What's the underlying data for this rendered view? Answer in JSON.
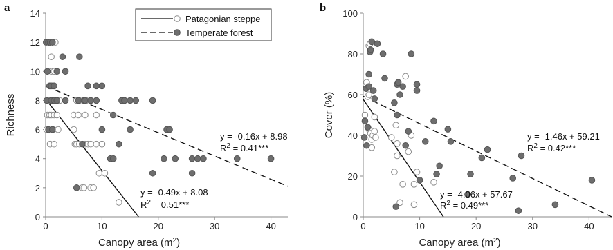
{
  "chart_data": [
    {
      "panel": "a",
      "type": "scatter",
      "xlabel": "Canopy area (m",
      "xlabel_sup": "2",
      "xlabel_close": ")",
      "ylabel": "Richness",
      "xlim": [
        0,
        43
      ],
      "ylim": [
        0,
        14
      ],
      "xticks": [
        0,
        10,
        20,
        30,
        40
      ],
      "yticks": [
        0,
        2,
        4,
        6,
        8,
        10,
        12,
        14
      ],
      "legend": {
        "placement": "top-center",
        "entries": [
          {
            "label": "Patagonian steppe",
            "marker": "open-circle",
            "line": "solid"
          },
          {
            "label": "Temperate forest",
            "marker": "filled-circle",
            "line": "dashed"
          }
        ]
      },
      "series": [
        {
          "name": "Patagonian steppe",
          "marker": "open",
          "fit": {
            "slope": -0.49,
            "intercept": 8.08,
            "x_end": 16.5
          },
          "equation": "y = -0.49x + 8.08",
          "r2_main": "R",
          "r2_sup": "2",
          "r2_rest": " = 0.51***",
          "x": [
            0.2,
            0.3,
            0.5,
            0.6,
            0.7,
            0.8,
            0.8,
            1,
            1,
            1,
            1,
            1.2,
            1.3,
            1.5,
            1.5,
            1.5,
            1.5,
            1.5,
            1.7,
            2,
            2,
            2.2,
            2.5,
            5,
            5,
            5.2,
            5.5,
            5.5,
            5.8,
            6,
            6,
            6.5,
            6.8,
            7,
            7,
            7.2,
            7.5,
            8,
            8,
            8,
            8.5,
            9,
            9,
            9.5,
            10,
            10,
            10.5,
            13
          ],
          "y": [
            6,
            7,
            8,
            12,
            7,
            9,
            5,
            10,
            8,
            11,
            7,
            9,
            6,
            10,
            8,
            7,
            9,
            5,
            12,
            7,
            8,
            6,
            8,
            6,
            7,
            5,
            5,
            8,
            7,
            5,
            8,
            2,
            2,
            5,
            7,
            8,
            5,
            8,
            2,
            5,
            2,
            5,
            7,
            3,
            5,
            5,
            3,
            1
          ]
        },
        {
          "name": "Temperate forest",
          "marker": "filled",
          "fit": {
            "slope": -0.16,
            "intercept": 8.98,
            "x_end": 43
          },
          "equation": "y = -0.16x + 8.98",
          "r2_main": "R",
          "r2_sup": "2",
          "r2_rest": " = 0.41***",
          "x": [
            0.1,
            0.2,
            0.3,
            0.5,
            0.5,
            0.7,
            0.8,
            1,
            1,
            1.2,
            1.2,
            1.5,
            1.5,
            2,
            2,
            3,
            3.5,
            3.5,
            5.5,
            5.8,
            6,
            6.5,
            6.8,
            7,
            7.5,
            8,
            9,
            9,
            10,
            10,
            11.5,
            12,
            12,
            13,
            13.5,
            14,
            15,
            15,
            16,
            19,
            19,
            21,
            21.5,
            22,
            23,
            26,
            26,
            27,
            28,
            34,
            40
          ],
          "y": [
            12,
            8,
            10,
            6,
            12,
            9,
            12,
            8,
            9,
            12,
            6,
            9,
            8,
            8,
            10,
            11,
            8,
            10,
            2,
            8,
            11,
            5,
            8,
            8,
            9,
            8,
            8,
            9,
            9,
            6,
            4,
            7,
            4,
            5,
            8,
            8,
            6,
            8,
            8,
            3,
            8,
            4,
            6,
            6,
            4,
            4,
            3,
            4,
            4,
            4,
            4
          ]
        }
      ]
    },
    {
      "panel": "b",
      "type": "scatter",
      "xlabel": "Canopy area (m",
      "xlabel_sup": "2",
      "xlabel_close": ")",
      "ylabel": "Cover (%)",
      "xlim": [
        0,
        44
      ],
      "ylim": [
        0,
        100
      ],
      "xticks": [
        0,
        10,
        20,
        30,
        40
      ],
      "yticks": [
        0,
        20,
        40,
        60,
        80,
        100
      ],
      "series": [
        {
          "name": "Patagonian steppe",
          "marker": "open",
          "fit": {
            "slope": -4.06,
            "intercept": 57.67,
            "x_end": 14.2
          },
          "equation": "y = -4.06x + 57.67",
          "r2_main": "R",
          "r2_sup": "2",
          "r2_rest": " = 0.49***",
          "x": [
            0.3,
            0.5,
            0.6,
            0.8,
            1,
            1,
            1,
            1.2,
            1.3,
            1.5,
            1.5,
            1.7,
            2,
            2,
            2.2,
            5,
            5.5,
            5.8,
            6,
            6,
            6.5,
            7,
            7.5,
            8,
            8.5,
            9,
            9,
            9.5,
            10,
            12.5
          ],
          "y": [
            50,
            63,
            66,
            59,
            43,
            60,
            84,
            85,
            41,
            34,
            38,
            40,
            42,
            49,
            39,
            39,
            22,
            45,
            36,
            30,
            7,
            16,
            69,
            32,
            40,
            16,
            6,
            22,
            18,
            17
          ]
        },
        {
          "name": "Temperate forest",
          "marker": "filled",
          "fit": {
            "slope": -1.46,
            "intercept": 59.21,
            "x_end": 44
          },
          "equation": "y = -1.46x + 59.21",
          "r2_main": "R",
          "r2_sup": "2",
          "r2_rest": " = 0.42***",
          "x": [
            0.2,
            0.3,
            0.5,
            0.6,
            0.8,
            1,
            1,
            1.2,
            1.3,
            1.5,
            1.8,
            2,
            2.5,
            3.5,
            3.8,
            5.5,
            5.8,
            6,
            6,
            6.2,
            6.5,
            7,
            7.5,
            8,
            8.5,
            9.5,
            9.5,
            10,
            11,
            12.5,
            13,
            13.5,
            15,
            15.5,
            18.5,
            19,
            21,
            22,
            26.5,
            27.5,
            28,
            34,
            40.5
          ],
          "y": [
            39,
            47,
            63,
            35,
            44,
            70,
            64,
            81,
            82,
            86,
            62,
            58,
            85,
            80,
            68,
            56,
            5,
            50,
            65,
            66,
            60,
            64,
            35,
            42,
            80,
            62,
            65,
            18,
            37,
            47,
            21,
            25,
            43,
            37,
            11,
            21,
            29,
            33,
            19,
            3,
            30,
            6,
            18
          ]
        }
      ]
    }
  ],
  "labels": {
    "panel_a": "a",
    "panel_b": "b"
  }
}
